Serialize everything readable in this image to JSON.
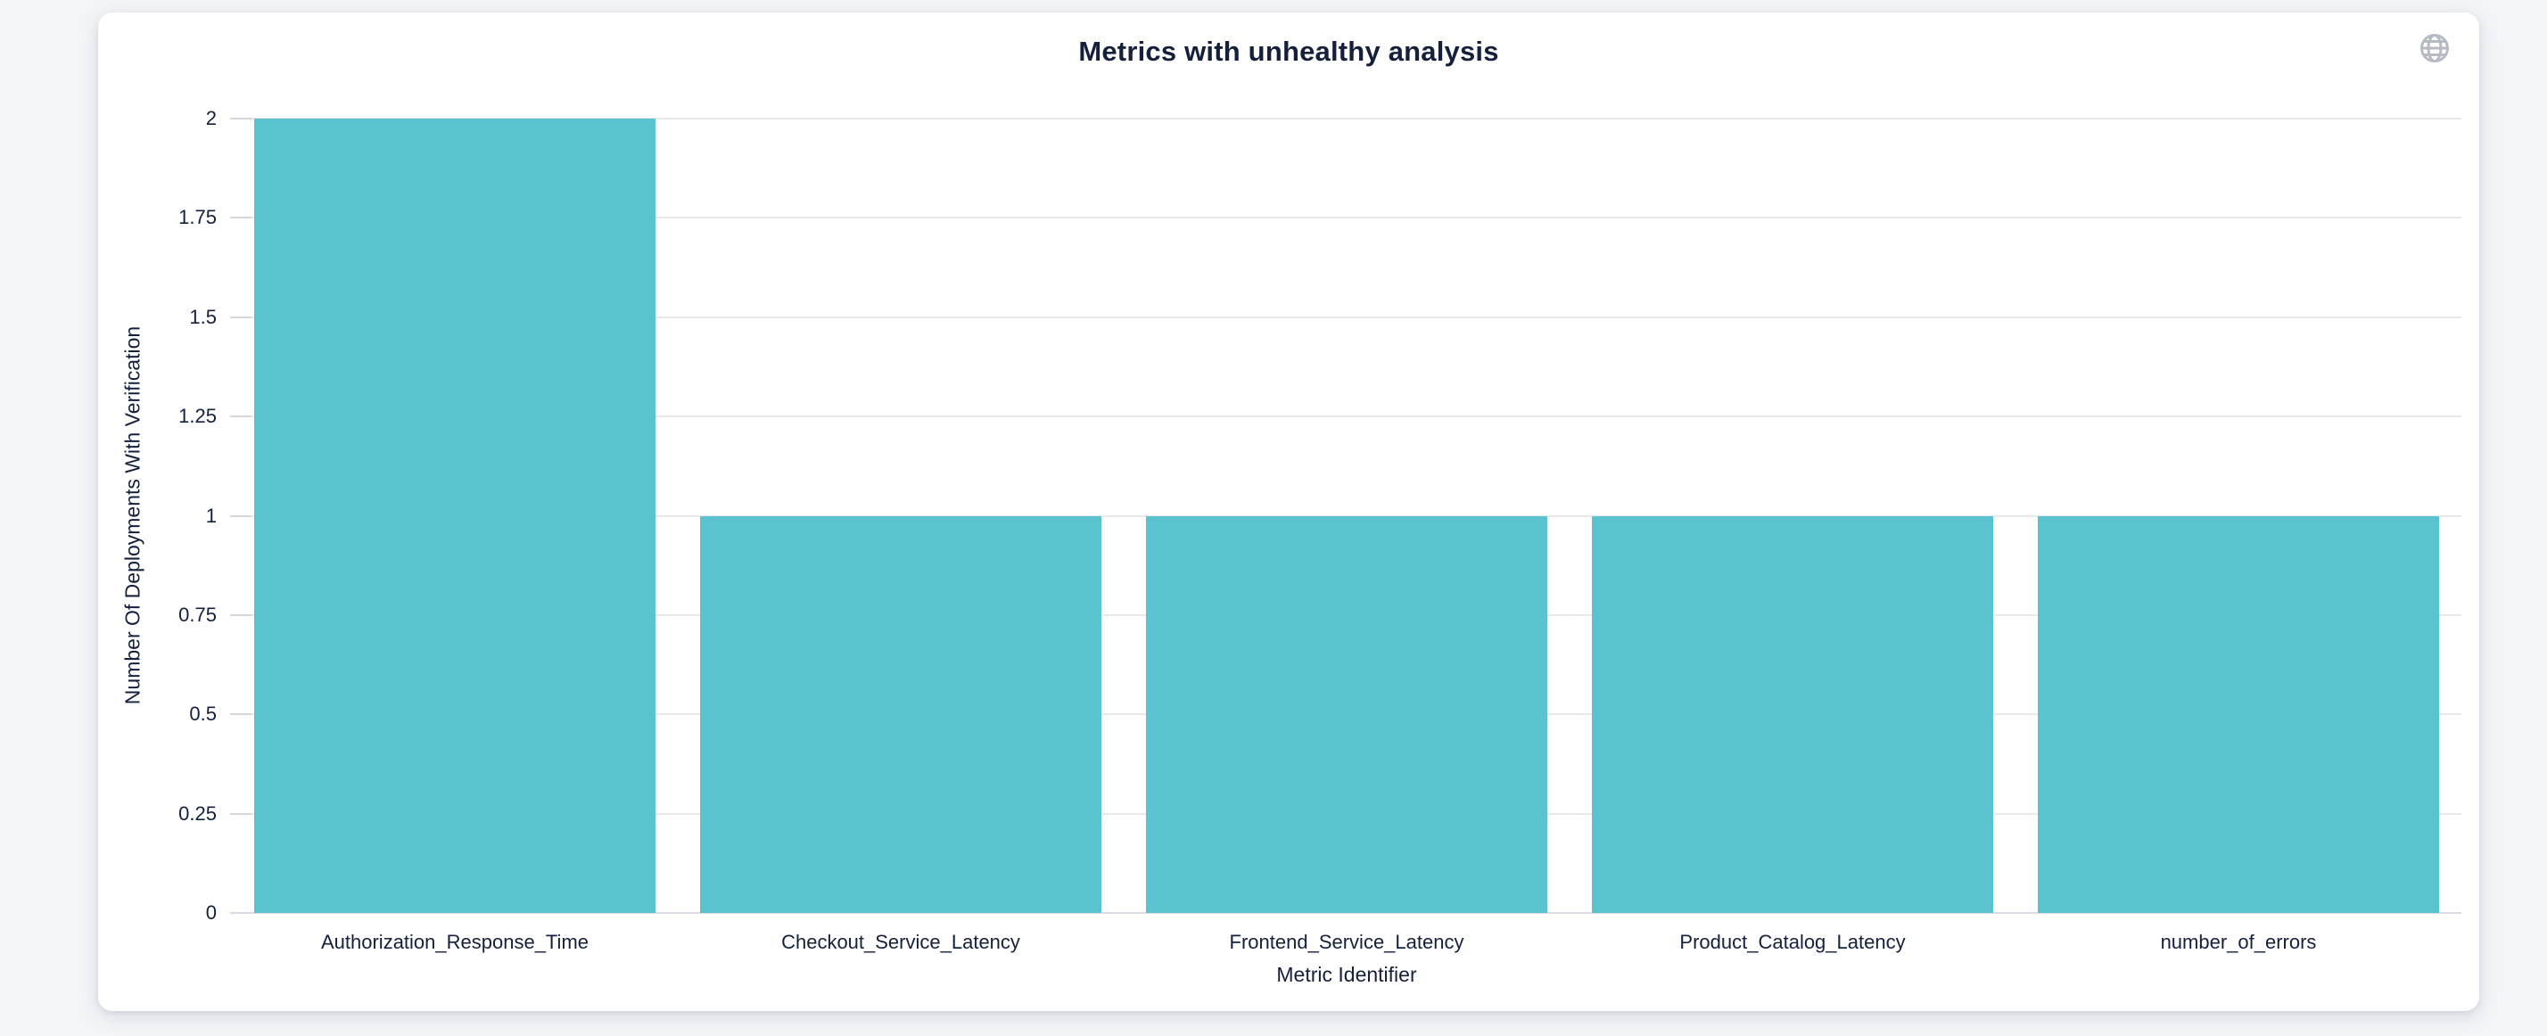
{
  "header": {
    "title": "Metrics with unhealthy analysis",
    "globe_icon": "globe-icon"
  },
  "chart_data": {
    "type": "bar",
    "title": "Metrics with unhealthy analysis",
    "categories": [
      "Authorization_Response_Time",
      "Checkout_Service_Latency",
      "Frontend_Service_Latency",
      "Product_Catalog_Latency",
      "number_of_errors"
    ],
    "values": [
      2,
      1,
      1,
      1,
      1
    ],
    "xlabel": "Metric Identifier",
    "ylabel": "Number Of Deployments With Verification",
    "ylim": [
      0,
      2
    ],
    "ytick_interval": 0.25,
    "ytick_labels": [
      "0",
      "0.25",
      "0.5",
      "0.75",
      "1",
      "1.25",
      "1.5",
      "1.75",
      "2"
    ],
    "grid": true,
    "legend": "none",
    "bar_width_fraction": 0.9,
    "bar_color": "#5ac3cf"
  },
  "colors": {
    "page_background": "#f4f5f8",
    "card_background": "#ffffff",
    "text": "#15203c",
    "gridline": "#e9e9e9",
    "axis_line": "#d4dbe4",
    "tick_mark": "#d6d6d6",
    "icon": "#b5bac4"
  }
}
